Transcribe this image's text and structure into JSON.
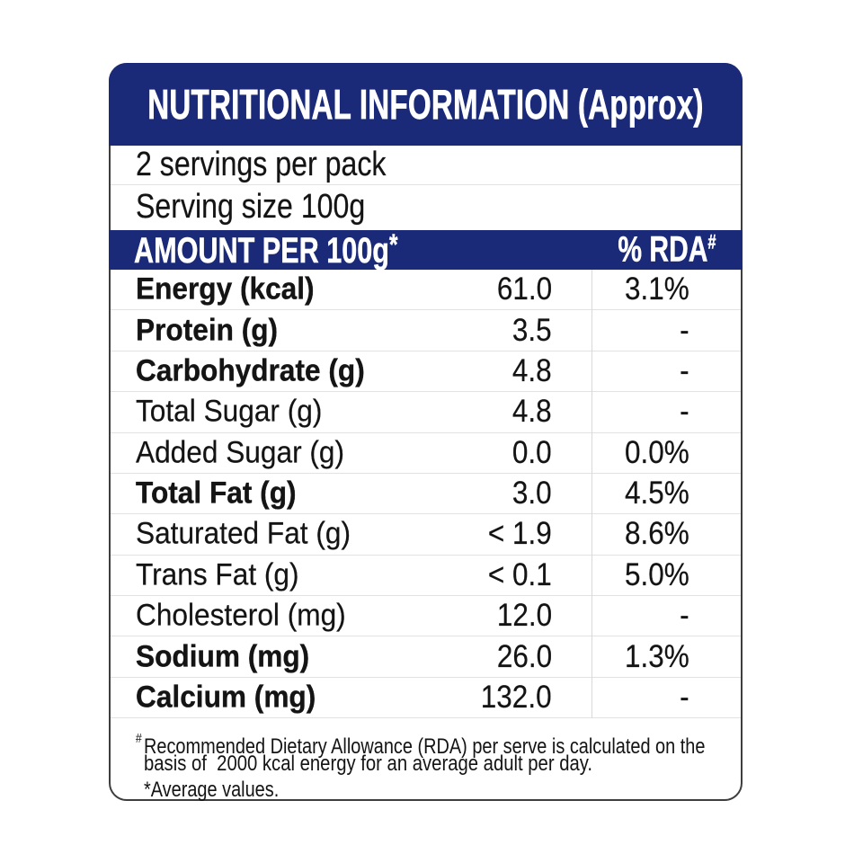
{
  "label": {
    "title": "NUTRITIONAL INFORMATION (Approx)",
    "servings_per_pack": "2 servings per pack",
    "serving_size": "Serving size 100g",
    "columns": {
      "amount_header": "AMOUNT PER 100g",
      "amount_header_sup": "*",
      "rda_header": "% RDA",
      "rda_header_sup": "#"
    },
    "rows": [
      {
        "name": "Energy (kcal)",
        "amount": "61.0",
        "rda": "3.1%",
        "bold": true
      },
      {
        "name": "Protein (g)",
        "amount": "3.5",
        "rda": "-",
        "bold": true
      },
      {
        "name": "Carbohydrate (g)",
        "amount": "4.8",
        "rda": "-",
        "bold": true
      },
      {
        "name": "Total Sugar (g)",
        "amount": "4.8",
        "rda": "-",
        "bold": false
      },
      {
        "name": "Added Sugar (g)",
        "amount": "0.0",
        "rda": "0.0%",
        "bold": false
      },
      {
        "name": "Total Fat (g)",
        "amount": "3.0",
        "rda": "4.5%",
        "bold": true
      },
      {
        "name": "Saturated Fat (g)",
        "amount": "< 1.9",
        "rda": "8.6%",
        "bold": false
      },
      {
        "name": "Trans Fat (g)",
        "amount": "< 0.1",
        "rda": "5.0%",
        "bold": false
      },
      {
        "name": "Cholesterol (mg)",
        "amount": "12.0",
        "rda": "-",
        "bold": false
      },
      {
        "name": "Sodium (mg)",
        "amount": "26.0",
        "rda": "1.3%",
        "bold": true
      },
      {
        "name": "Calcium (mg)",
        "amount": "132.0",
        "rda": "-",
        "bold": true
      }
    ],
    "footnote": {
      "hash_sup": "#",
      "line1": "Recommended Dietary Allowance (RDA) per serve is calculated on the",
      "line2": "basis of  2000 kcal energy for an average adult per day.",
      "line3": "*Average values."
    },
    "colors": {
      "navy": "#1b2a78",
      "text": "#141414",
      "grid_line": "#e2e2e2",
      "card_border": "#3e3e3e"
    }
  }
}
